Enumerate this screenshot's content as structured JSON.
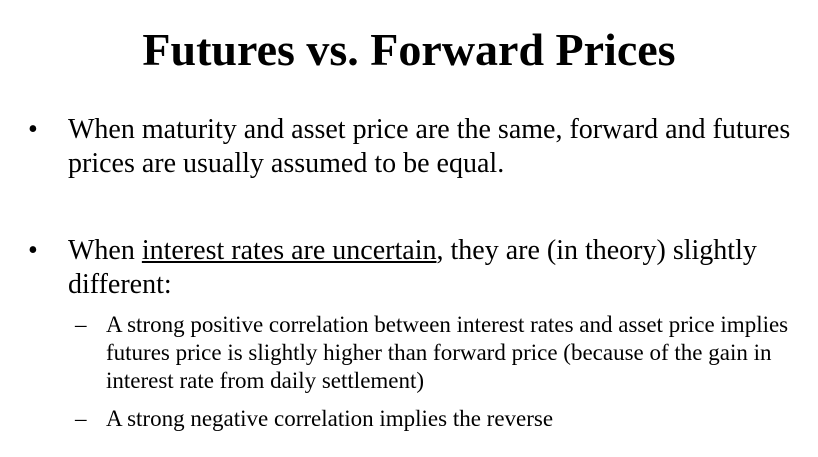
{
  "slide": {
    "title": "Futures vs. Forward Prices",
    "bullet_glyph": "•",
    "dash_glyph": "–",
    "bullets": [
      {
        "text": "When maturity and asset price are the same, forward and futures prices are usually assumed to be equal."
      },
      {
        "text_before": "When ",
        "underlined": "interest rates are uncertain",
        "text_after": ", they are (in theory) slightly different:",
        "subpoints": [
          {
            "text": "A strong positive correlation between interest rates and asset price implies futures price is slightly higher than forward price (because of the gain in interest rate from daily settlement)"
          },
          {
            "text": "A strong negative correlation implies the reverse"
          }
        ]
      }
    ]
  }
}
